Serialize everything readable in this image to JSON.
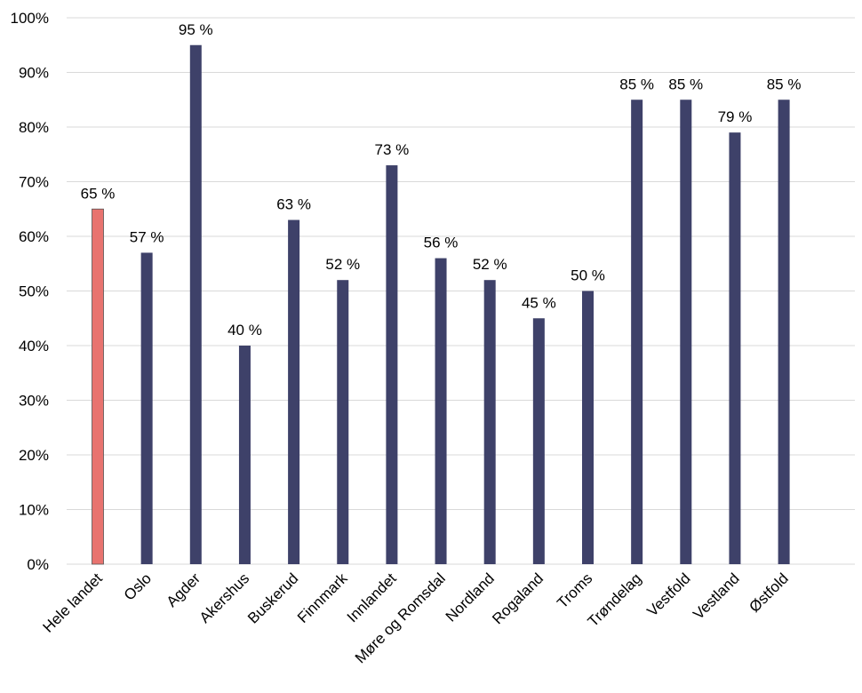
{
  "chart_data": {
    "type": "bar",
    "categories": [
      "Hele landet",
      "Oslo",
      "Agder",
      "Akershus",
      "Buskerud",
      "Finnmark",
      "Innlandet",
      "Møre og Romsdal",
      "Nordland",
      "Rogaland",
      "Troms",
      "Trøndelag",
      "Vestfold",
      "Vestland",
      "Østfold"
    ],
    "values": [
      65,
      57,
      95,
      40,
      63,
      52,
      73,
      56,
      52,
      45,
      50,
      85,
      85,
      79,
      85
    ],
    "data_labels": [
      "65 %",
      "57 %",
      "95 %",
      "40 %",
      "63 %",
      "52 %",
      "73 %",
      "56 %",
      "52 %",
      "45 %",
      "50 %",
      "85 %",
      "85 %",
      "79 %",
      "85 %"
    ],
    "ylim": [
      0,
      100
    ],
    "y_ticks": [
      0,
      10,
      20,
      30,
      40,
      50,
      60,
      70,
      80,
      90,
      100
    ],
    "y_tick_labels": [
      "0%",
      "10%",
      "20%",
      "30%",
      "40%",
      "50%",
      "60%",
      "70%",
      "80%",
      "90%",
      "100%"
    ],
    "grid": true,
    "legend": "none",
    "colors": {
      "highlight": "#E8736F",
      "default": "#3E4169",
      "grid": "#D9D9D9"
    }
  }
}
